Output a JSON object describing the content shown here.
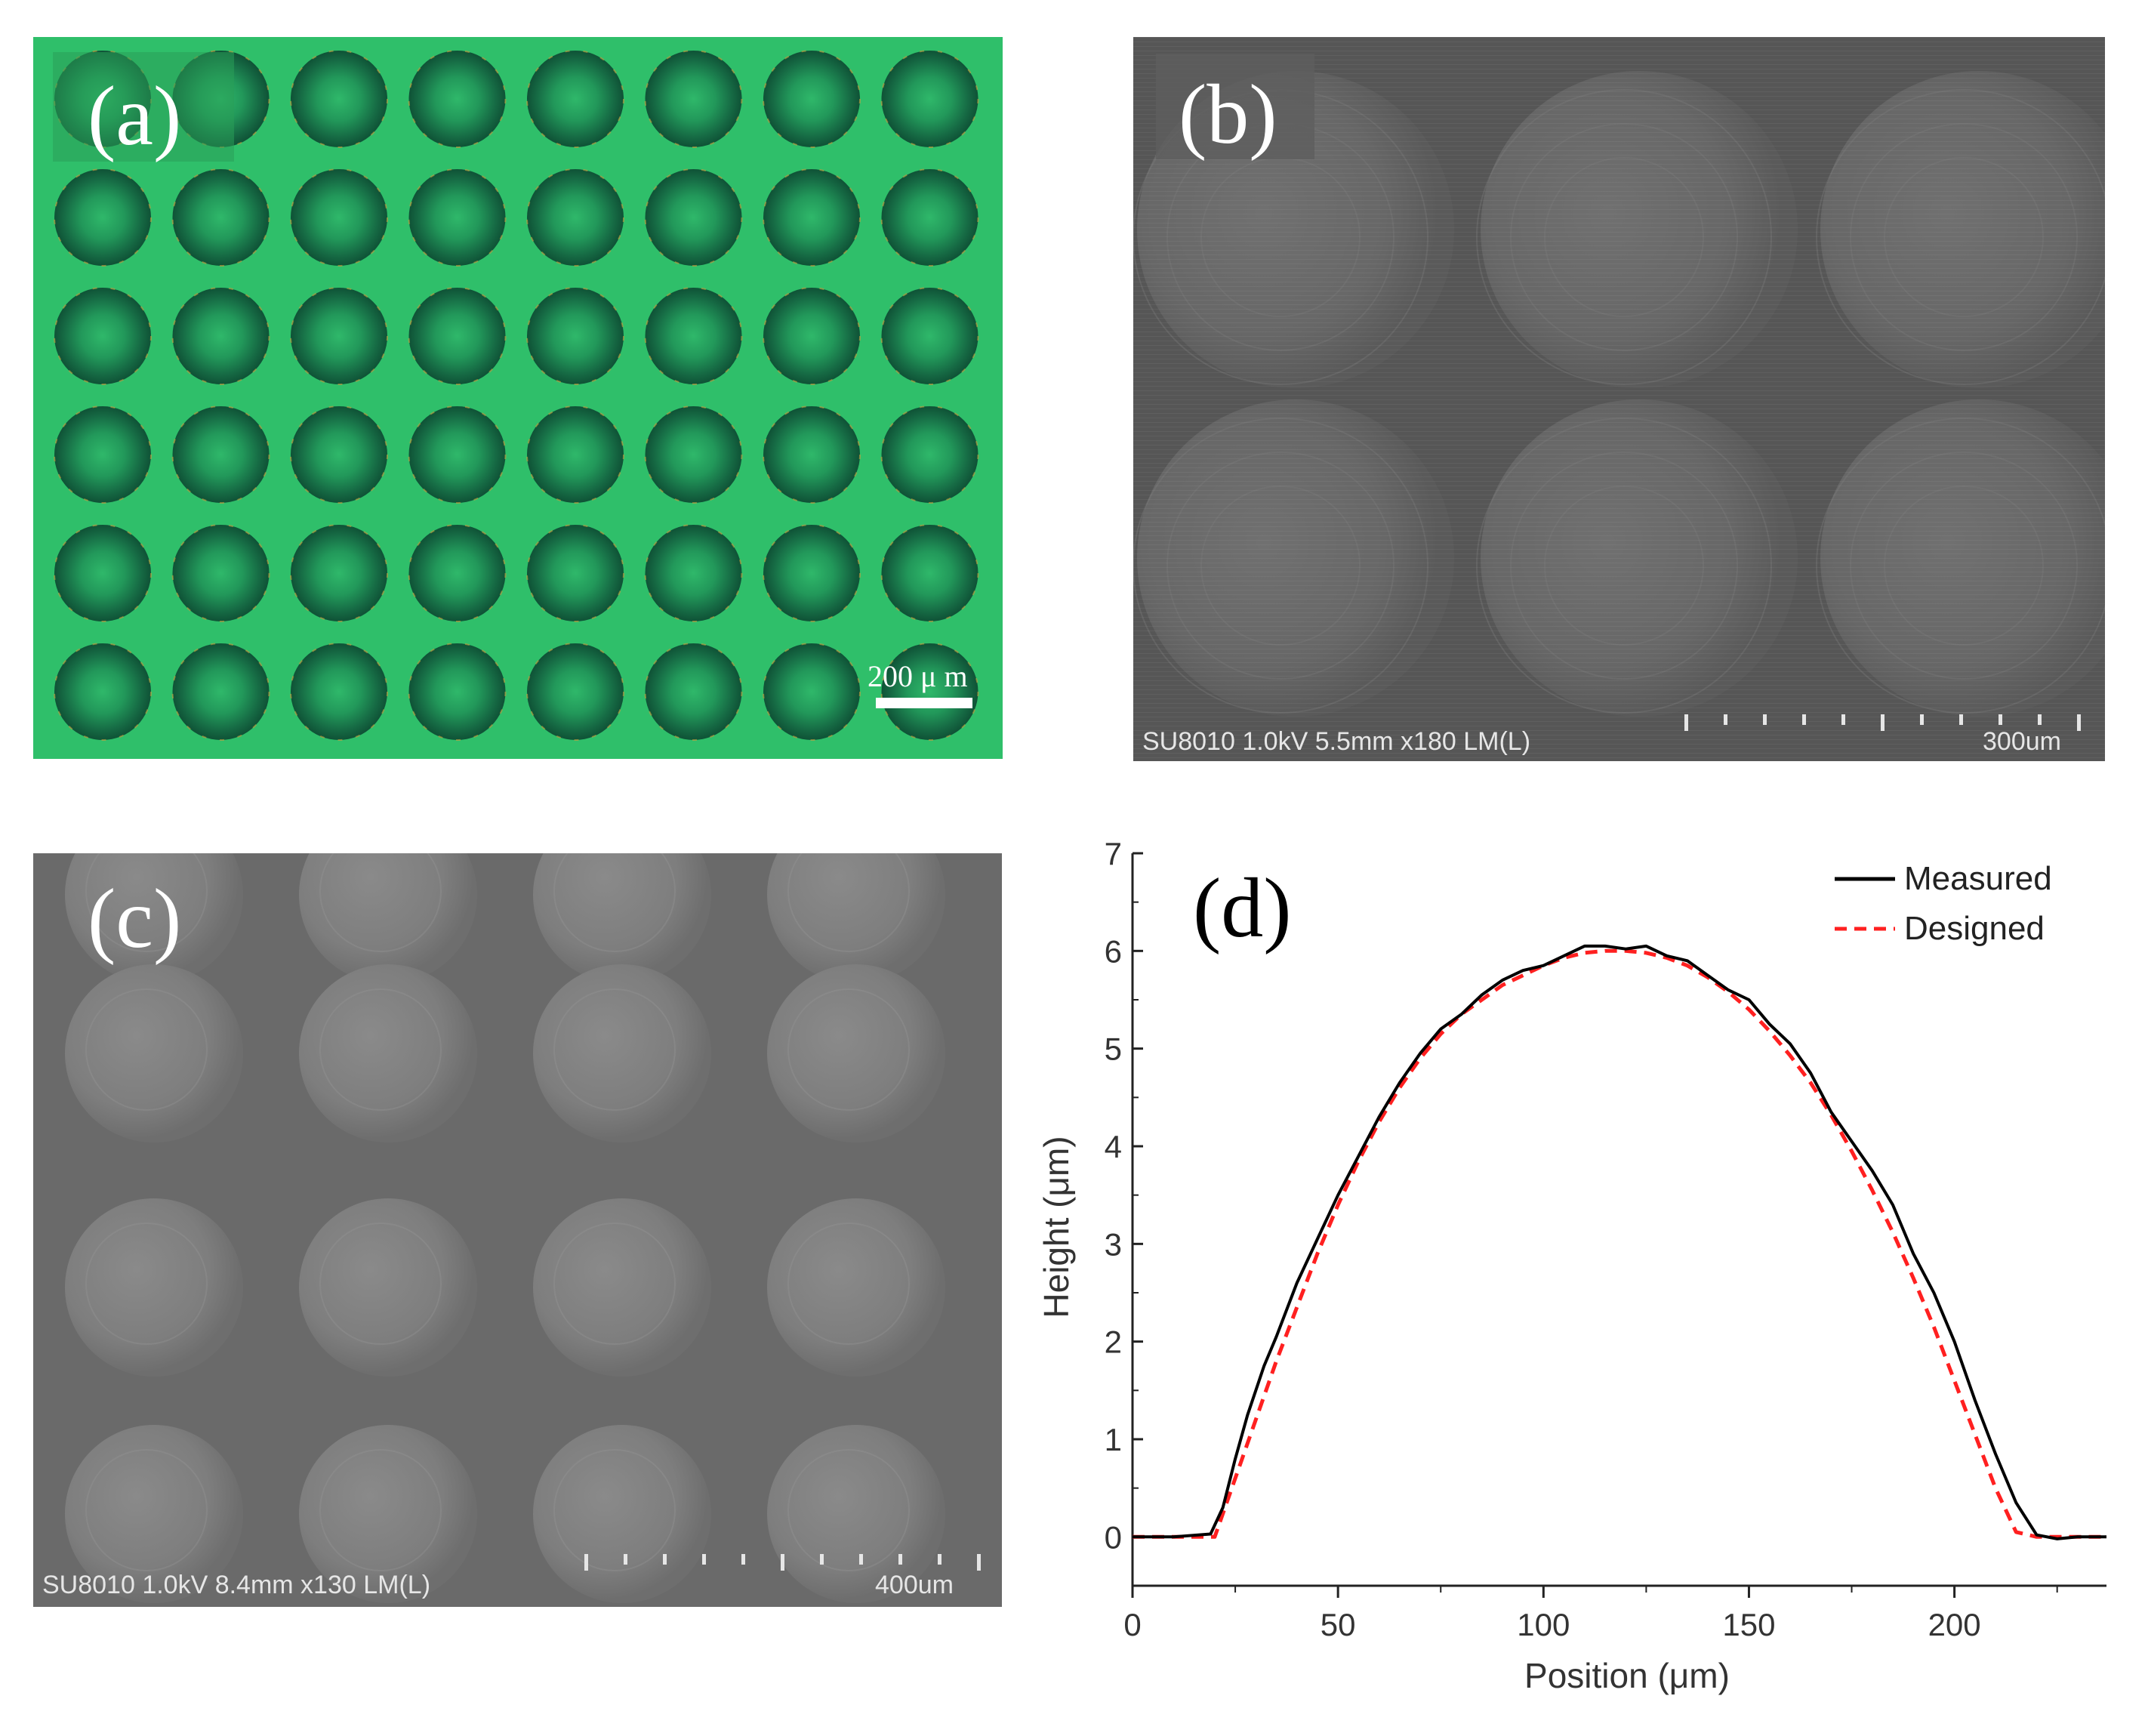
{
  "figure": {
    "panels": [
      {
        "label": "(a)",
        "scale_bar": "200 μ m",
        "colors": {
          "background": "#2fbf6a",
          "dot_dark": "#145a3a",
          "dot_center": "#2fb86a"
        }
      },
      {
        "label": "(b)",
        "info": "SU8010 1.0kV 5.5mm x180 LM(L)",
        "scale": "300um"
      },
      {
        "label": "(c)",
        "info": "SU8010 1.0kV 8.4mm x130 LM(L)",
        "scale": "400um"
      },
      {
        "label": "(d)"
      }
    ]
  },
  "chart_data": {
    "type": "line",
    "xlabel": "Position (μm)",
    "ylabel": "Height (μm)",
    "xlim": [
      0,
      237
    ],
    "ylim": [
      -0.5,
      7
    ],
    "xticks": [
      0,
      50,
      100,
      150,
      200
    ],
    "yticks": [
      0,
      1,
      2,
      3,
      4,
      5,
      6,
      7
    ],
    "legend_position": "top-right",
    "series": [
      {
        "name": "Measured",
        "color": "#000000",
        "style": "solid",
        "x": [
          0,
          10,
          19,
          22,
          25,
          28,
          32,
          35,
          40,
          45,
          50,
          55,
          60,
          65,
          70,
          75,
          80,
          85,
          90,
          95,
          100,
          105,
          110,
          115,
          120,
          125,
          130,
          135,
          140,
          145,
          150,
          155,
          160,
          165,
          170,
          175,
          180,
          185,
          190,
          195,
          200,
          205,
          210,
          215,
          220,
          225,
          230,
          237
        ],
        "y": [
          0,
          0,
          0.03,
          0.3,
          0.8,
          1.25,
          1.75,
          2.05,
          2.6,
          3.05,
          3.5,
          3.9,
          4.3,
          4.65,
          4.95,
          5.2,
          5.35,
          5.55,
          5.7,
          5.8,
          5.85,
          5.95,
          6.05,
          6.05,
          6.02,
          6.05,
          5.95,
          5.9,
          5.75,
          5.6,
          5.5,
          5.25,
          5.05,
          4.75,
          4.35,
          4.05,
          3.75,
          3.4,
          2.9,
          2.5,
          2.0,
          1.4,
          0.85,
          0.35,
          0.02,
          -0.02,
          0,
          0
        ]
      },
      {
        "name": "Designed",
        "color": "#ff2020",
        "style": "dashed",
        "x": [
          0,
          10,
          20,
          25,
          30,
          35,
          40,
          45,
          50,
          55,
          60,
          65,
          70,
          75,
          80,
          85,
          90,
          95,
          100,
          105,
          110,
          115,
          120,
          125,
          130,
          135,
          140,
          145,
          150,
          155,
          160,
          165,
          170,
          175,
          180,
          185,
          190,
          195,
          200,
          205,
          210,
          215,
          220,
          225,
          230,
          237
        ],
        "y": [
          0,
          0,
          0,
          0.6,
          1.2,
          1.8,
          2.35,
          2.9,
          3.4,
          3.85,
          4.25,
          4.6,
          4.9,
          5.15,
          5.35,
          5.5,
          5.65,
          5.75,
          5.85,
          5.93,
          5.98,
          6.0,
          6.0,
          5.98,
          5.93,
          5.85,
          5.73,
          5.58,
          5.4,
          5.18,
          4.93,
          4.65,
          4.32,
          3.95,
          3.55,
          3.12,
          2.65,
          2.15,
          1.6,
          1.05,
          0.5,
          0.05,
          0,
          0,
          0,
          0
        ]
      }
    ]
  }
}
